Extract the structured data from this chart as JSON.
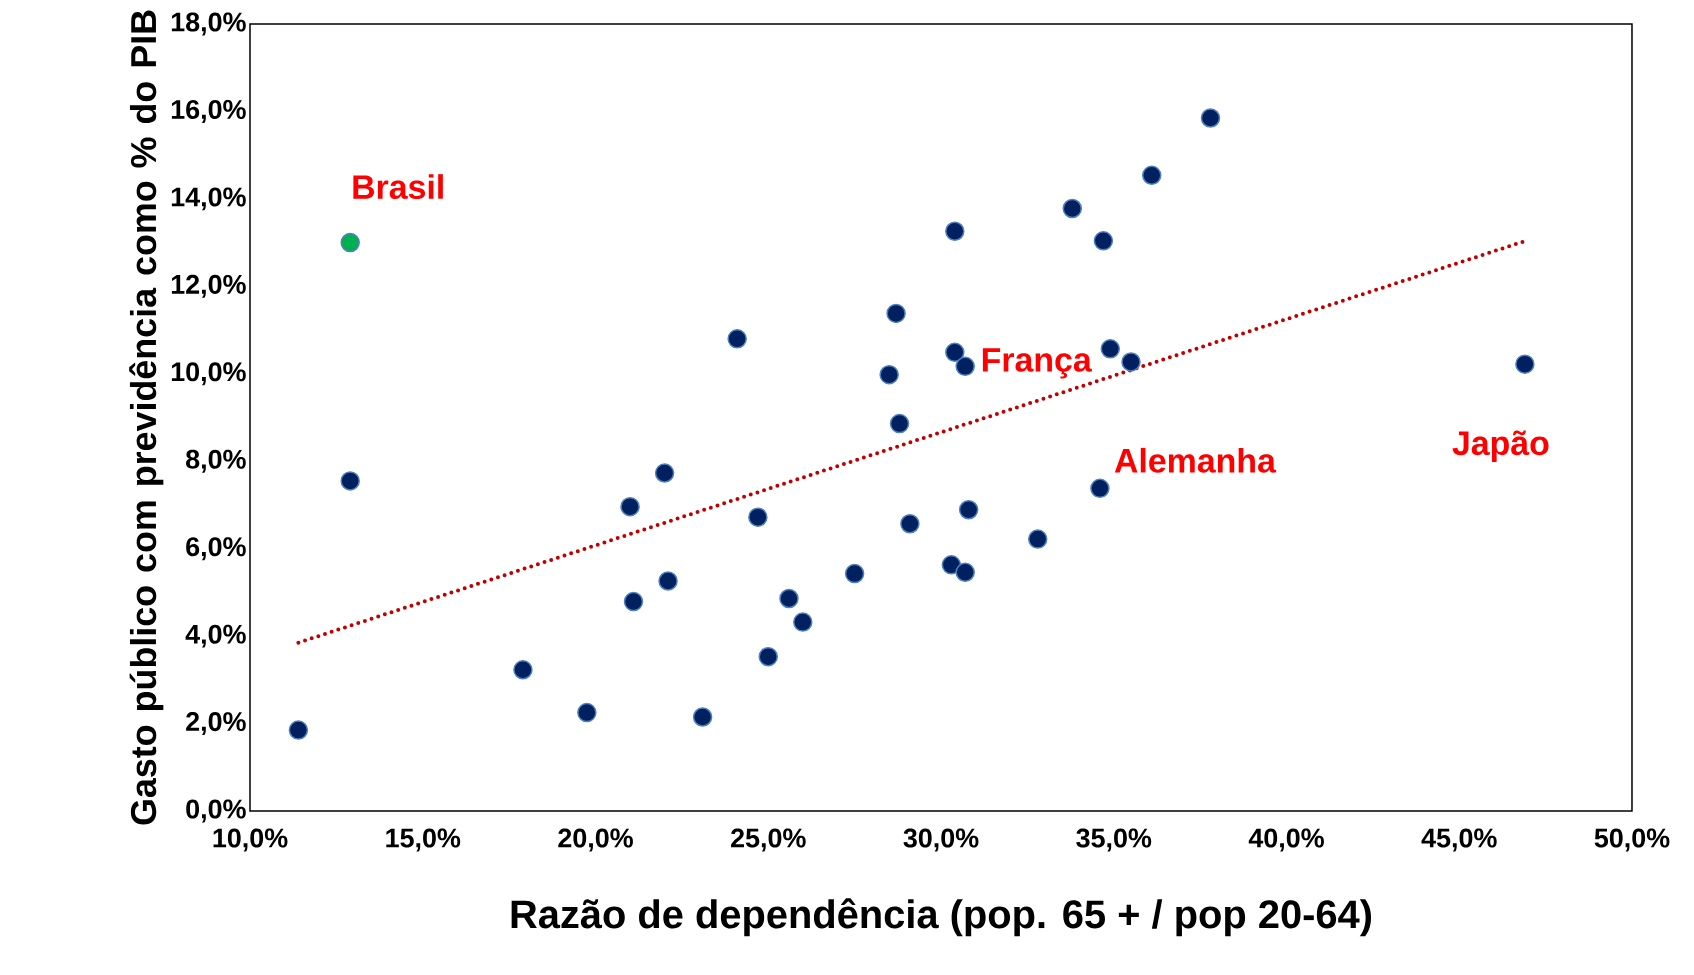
{
  "chart_data": {
    "type": "scatter",
    "xlabel": "Razão de dependência (pop. 65 + / pop 20-64)",
    "ylabel": "Gasto público com previdência como % do PIB",
    "xlim": [
      10,
      50
    ],
    "ylim": [
      0,
      18
    ],
    "xticks": [
      {
        "value": 10,
        "label": "10,0%"
      },
      {
        "value": 15,
        "label": "15,0%"
      },
      {
        "value": 20,
        "label": "20,0%"
      },
      {
        "value": 25,
        "label": "25,0%"
      },
      {
        "value": 30,
        "label": "30,0%"
      },
      {
        "value": 35,
        "label": "35,0%"
      },
      {
        "value": 40,
        "label": "40,0%"
      },
      {
        "value": 45,
        "label": "45,0%"
      },
      {
        "value": 50,
        "label": "50,0%"
      }
    ],
    "yticks": [
      {
        "value": 0,
        "label": "0,0%"
      },
      {
        "value": 2,
        "label": "2,0%"
      },
      {
        "value": 4,
        "label": "4,0%"
      },
      {
        "value": 6,
        "label": "6,0%"
      },
      {
        "value": 8,
        "label": "8,0%"
      },
      {
        "value": 10,
        "label": "10,0%"
      },
      {
        "value": 12,
        "label": "12,0%"
      },
      {
        "value": 14,
        "label": "14,0%"
      },
      {
        "value": 16,
        "label": "16,0%"
      },
      {
        "value": 18,
        "label": "18,0%"
      }
    ],
    "grid": false,
    "marker": "circle",
    "series": [
      {
        "type": "scatter",
        "x": [
          12.9,
          12.9,
          11.4,
          17.9,
          19.75,
          21.0,
          21.1,
          22.0,
          22.1,
          23.1,
          24.1,
          24.7,
          25.0,
          25.6,
          26.0,
          27.5,
          28.5,
          28.7,
          28.8,
          29.1,
          30.3,
          30.4,
          30.4,
          30.7,
          30.7,
          30.8,
          32.8,
          33.8,
          34.6,
          34.7,
          34.9,
          35.5,
          36.1,
          37.8,
          46.9
        ],
        "values": [
          13.0,
          7.55,
          1.85,
          3.23,
          2.25,
          6.96,
          4.79,
          7.73,
          5.26,
          2.15,
          10.8,
          6.72,
          3.53,
          4.86,
          4.32,
          5.43,
          9.98,
          11.38,
          8.86,
          6.57,
          5.63,
          13.26,
          10.49,
          10.17,
          5.46,
          6.89,
          6.22,
          13.78,
          7.38,
          13.04,
          10.57,
          10.27,
          14.54,
          15.85,
          10.22
        ],
        "colors": [
          "#00b050",
          "#002060",
          "#002060",
          "#002060",
          "#002060",
          "#002060",
          "#002060",
          "#002060",
          "#002060",
          "#002060",
          "#002060",
          "#002060",
          "#002060",
          "#002060",
          "#002060",
          "#002060",
          "#002060",
          "#002060",
          "#002060",
          "#002060",
          "#002060",
          "#002060",
          "#002060",
          "#002060",
          "#002060",
          "#002060",
          "#002060",
          "#002060",
          "#002060",
          "#002060",
          "#002060",
          "#002060",
          "#002060",
          "#002060",
          "#002060"
        ]
      },
      {
        "type": "line",
        "x": [
          11.4,
          47.0
        ],
        "values": [
          3.85,
          13.06
        ],
        "color": "#c00000",
        "line_style": "dotted",
        "marker": "none"
      }
    ],
    "annotations": [
      {
        "text": "Brasil",
        "x": 12.9,
        "y": 13.0
      },
      {
        "text": "França",
        "x": 30.7,
        "y": 10.17
      },
      {
        "text": "Alemanha",
        "x": 34.6,
        "y": 7.38
      },
      {
        "text": "Japão",
        "x": 46.9,
        "y": 10.22
      }
    ]
  }
}
